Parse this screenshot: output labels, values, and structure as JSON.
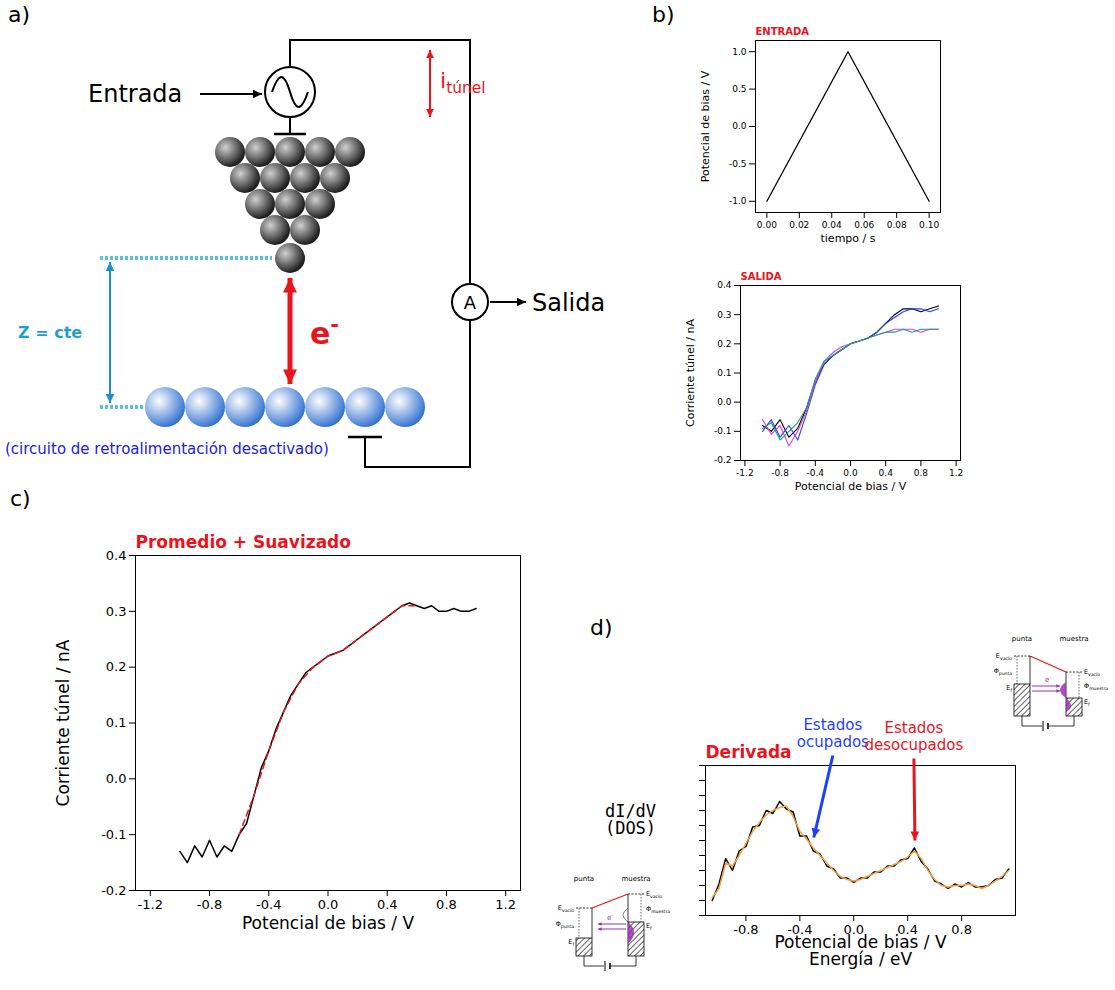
{
  "diagram": {
    "panel": "a)",
    "input": "Entrada",
    "output": "Salida",
    "ammeter": "A",
    "current": {
      "text": "i",
      "sub": "túnel"
    },
    "electron": {
      "text": "e",
      "sup": "-"
    },
    "gap": "Z = cte",
    "note": "(circuito de retroalimentación desactivado)"
  },
  "chart_data": [
    {
      "type": "line",
      "panel": "b)",
      "title": "ENTRADA",
      "x_label": "tiempo / s",
      "y_label": "Potencial de bias / V",
      "x": [
        0,
        0.05,
        0.1
      ],
      "series": [
        {
          "color": "#000000",
          "values": [
            -1,
            1,
            -1
          ]
        }
      ],
      "xlim": [
        -0.007,
        0.107
      ],
      "ylim": [
        -1.15,
        1.15
      ],
      "xticks": [
        {
          "value": 0,
          "label": "0.00"
        },
        0.02,
        0.04,
        0.06,
        0.08,
        {
          "value": 0.1,
          "label": "0.10"
        }
      ],
      "yticks": [
        {
          "value": -1,
          "label": "-1.0"
        },
        -0.5,
        {
          "value": 0,
          "label": "0.0"
        },
        0.5,
        {
          "value": 1,
          "label": "1.0"
        }
      ]
    },
    {
      "type": "line",
      "title": "SALIDA",
      "x_label": "Potencial de bias / V",
      "y_label": "Corriente túnel / nA",
      "x": [
        -1,
        -0.9,
        -0.8,
        -0.7,
        -0.6,
        -0.5,
        -0.4,
        -0.3,
        -0.2,
        -0.1,
        0,
        0.1,
        0.2,
        0.3,
        0.4,
        0.5,
        0.6,
        0.7,
        0.8,
        0.9,
        1
      ],
      "series": [
        {
          "color": "#000000",
          "values": [
            -0.08,
            -0.1,
            -0.06,
            -0.12,
            -0.09,
            -0.02,
            0.07,
            0.13,
            0.16,
            0.18,
            0.2,
            0.21,
            0.22,
            0.24,
            0.27,
            0.3,
            0.32,
            0.32,
            0.31,
            0.32,
            0.33
          ]
        },
        {
          "color": "#1f3fff",
          "values": [
            -0.1,
            -0.06,
            -0.12,
            -0.08,
            -0.13,
            -0.04,
            0.06,
            0.13,
            0.16,
            0.18,
            0.2,
            0.21,
            0.22,
            0.24,
            0.27,
            0.29,
            0.31,
            0.32,
            0.32,
            0.31,
            0.32
          ]
        },
        {
          "color": "#e040e0",
          "values": [
            -0.06,
            -0.11,
            -0.08,
            -0.15,
            -0.1,
            -0.03,
            0.07,
            0.14,
            0.17,
            0.19,
            0.2,
            0.21,
            0.22,
            0.23,
            0.24,
            0.25,
            0.25,
            0.25,
            0.24,
            0.25,
            0.25
          ]
        },
        {
          "color": "#20a070",
          "values": [
            -0.09,
            -0.07,
            -0.13,
            -0.1,
            -0.07,
            -0.02,
            0.08,
            0.14,
            0.16,
            0.18,
            0.2,
            0.21,
            0.22,
            0.23,
            0.24,
            0.24,
            0.25,
            0.24,
            0.25,
            0.25,
            0.25
          ]
        }
      ],
      "xlim": [
        -1.25,
        1.25
      ],
      "ylim": [
        -0.2,
        0.4
      ],
      "xticks": [
        -1.2,
        -0.8,
        -0.4,
        {
          "value": 0,
          "label": "0.0"
        },
        0.4,
        0.8,
        1.2
      ],
      "yticks": [
        -0.2,
        -0.1,
        {
          "value": 0,
          "label": "0.0"
        },
        0.1,
        0.2,
        0.3,
        0.4
      ]
    },
    {
      "type": "line",
      "panel": "c)",
      "title": "Promedio + Suavizado",
      "x_label": "Potencial de bias / V",
      "y_label": "Corriente túnel / nA",
      "series": [
        {
          "color": "#000000",
          "x": [
            -1,
            -0.95,
            -0.9,
            -0.85,
            -0.8,
            -0.75,
            -0.7,
            -0.65,
            -0.6,
            -0.55,
            -0.5,
            -0.45,
            -0.4,
            -0.35,
            -0.3,
            -0.25,
            -0.2,
            -0.15,
            -0.1,
            -0.05,
            0,
            0.05,
            0.1,
            0.15,
            0.2,
            0.25,
            0.3,
            0.35,
            0.4,
            0.45,
            0.5,
            0.55,
            0.6,
            0.65,
            0.7,
            0.75,
            0.8,
            0.85,
            0.9,
            0.95,
            1
          ],
          "values": [
            -0.13,
            -0.15,
            -0.12,
            -0.14,
            -0.11,
            -0.14,
            -0.12,
            -0.13,
            -0.1,
            -0.08,
            -0.03,
            0.02,
            0.05,
            0.09,
            0.12,
            0.15,
            0.17,
            0.19,
            0.2,
            0.21,
            0.22,
            0.225,
            0.23,
            0.24,
            0.25,
            0.26,
            0.27,
            0.28,
            0.29,
            0.3,
            0.31,
            0.315,
            0.31,
            0.305,
            0.31,
            0.3,
            0.3,
            0.305,
            0.3,
            0.3,
            0.305
          ]
        },
        {
          "color": "#e8141e",
          "line_style": "dashed",
          "x": [
            -0.6,
            -0.5,
            -0.4,
            -0.3,
            -0.2,
            -0.1,
            0,
            0.1,
            0.2,
            0.3,
            0.4,
            0.5,
            0.6
          ],
          "values": [
            -0.1,
            -0.03,
            0.05,
            0.12,
            0.17,
            0.2,
            0.22,
            0.23,
            0.25,
            0.27,
            0.29,
            0.31,
            0.31
          ]
        }
      ],
      "xlim": [
        -1.3,
        1.3
      ],
      "ylim": [
        -0.2,
        0.4
      ],
      "xticks": [
        -1.2,
        -0.8,
        -0.4,
        {
          "value": 0,
          "label": "0.0"
        },
        0.4,
        0.8,
        1.2
      ],
      "yticks": [
        -0.2,
        -0.1,
        {
          "value": 0,
          "label": "0.0"
        },
        0.1,
        0.2,
        0.3,
        0.4
      ]
    },
    {
      "type": "line",
      "panel": "d)",
      "title": "Derivada",
      "x_label": [
        "Potencial de bias / V",
        "Energía / eV"
      ],
      "y_label": [
        "dI/dV",
        "(DOS)"
      ],
      "x": [
        -1.05,
        -1,
        -0.95,
        -0.9,
        -0.85,
        -0.8,
        -0.75,
        -0.7,
        -0.65,
        -0.6,
        -0.55,
        -0.5,
        -0.45,
        -0.4,
        -0.35,
        -0.3,
        -0.25,
        -0.2,
        -0.15,
        -0.1,
        -0.05,
        0,
        0.05,
        0.1,
        0.15,
        0.2,
        0.25,
        0.3,
        0.35,
        0.4,
        0.45,
        0.5,
        0.55,
        0.6,
        0.65,
        0.7,
        0.75,
        0.8,
        0.85,
        0.9,
        0.95,
        1,
        1.05,
        1.1,
        1.15
      ],
      "series": [
        {
          "color": "#000000",
          "values": [
            1.0,
            2.1,
            3.8,
            3.0,
            4.3,
            4.6,
            5.9,
            6.0,
            7.0,
            6.8,
            7.6,
            7.1,
            6.9,
            5.3,
            5.3,
            4.3,
            4.1,
            3.3,
            3.1,
            2.5,
            2.5,
            2.2,
            2.5,
            2.5,
            2.9,
            2.9,
            3.3,
            3.3,
            3.7,
            3.8,
            4.5,
            3.6,
            3.1,
            2.3,
            2.1,
            1.8,
            2.1,
            1.9,
            2.2,
            1.9,
            1.9,
            2.0,
            2.4,
            2.5,
            3.1
          ]
        },
        {
          "color": "#f5a040",
          "values": [
            1.2,
            1.8,
            3.5,
            3.3,
            4.0,
            4.8,
            5.6,
            6.2,
            6.7,
            7.0,
            7.2,
            7.3,
            6.6,
            5.6,
            5.1,
            4.5,
            4.0,
            3.5,
            3.0,
            2.6,
            2.4,
            2.3,
            2.4,
            2.6,
            2.8,
            3.0,
            3.2,
            3.4,
            3.6,
            3.9,
            4.3,
            3.8,
            3.0,
            2.4,
            2.0,
            1.9,
            2.0,
            2.0,
            2.1,
            2.0,
            1.8,
            2.0,
            2.3,
            2.6,
            3.0
          ]
        }
      ],
      "xlim": [
        -1.1,
        1.2
      ],
      "ylim": [
        0,
        10
      ],
      "xticks": [
        -0.8,
        -0.4,
        {
          "value": 0,
          "label": "0.0"
        },
        0.4,
        0.8
      ],
      "yticks": [
        0,
        1,
        2,
        3,
        4,
        5,
        6,
        7,
        8,
        9,
        10
      ],
      "tick_labels": "x",
      "annotations": [
        {
          "text": "Estados ocupados",
          "x": -0.3,
          "y": 4.5,
          "color": "#1f3fff"
        },
        {
          "text": "Estados desocupados",
          "x": 0.45,
          "y": 4.3,
          "color": "#e8141e"
        }
      ],
      "insets": [
        {
          "tip": "punta",
          "sample": "muestra",
          "vacuum": {
            "text": "E",
            "sub": "vacío"
          },
          "work_tip": {
            "text": "Φ",
            "sub": "punta"
          },
          "work_sample": {
            "text": "Φ",
            "sub": "muestra"
          },
          "fermi": {
            "text": "E",
            "sub": "f"
          },
          "electron": {
            "text": "e",
            "sup": "-"
          }
        },
        {
          "tip": "punta",
          "sample": "muestra",
          "vacuum": {
            "text": "E",
            "sub": "vacío"
          },
          "work_tip": {
            "text": "Φ",
            "sub": "punta"
          },
          "work_sample": {
            "text": "Φ",
            "sub": "muestra"
          },
          "fermi": {
            "text": "E",
            "sub": "f"
          },
          "electron": {
            "text": "e",
            "sup": "-"
          }
        }
      ]
    }
  ]
}
